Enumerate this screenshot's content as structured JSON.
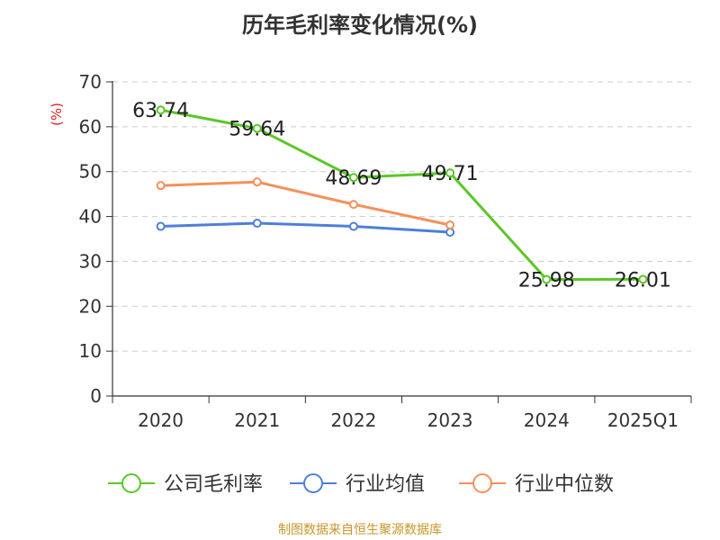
{
  "chart_data": {
    "type": "line",
    "title": "历年毛利率变化情况(%)",
    "ylabel": "(%)",
    "xlabel": "",
    "categories": [
      "2020",
      "2021",
      "2022",
      "2023",
      "2024",
      "2025Q1"
    ],
    "ylim": [
      0,
      70
    ],
    "yticks": [
      0,
      10,
      20,
      30,
      40,
      50,
      60,
      70
    ],
    "grid": true,
    "legend_position": "bottom",
    "series": [
      {
        "name": "公司毛利率",
        "color": "#5bc726",
        "values": [
          63.74,
          59.64,
          48.69,
          49.71,
          25.98,
          26.01
        ],
        "labels": [
          "63.74",
          "59.64",
          "48.69",
          "49.71",
          "25.98",
          "26.01"
        ]
      },
      {
        "name": "行业均值",
        "color": "#4e7fd9",
        "values": [
          37.8,
          38.5,
          37.8,
          36.5,
          null,
          null
        ]
      },
      {
        "name": "行业中位数",
        "color": "#f5905a",
        "values": [
          46.9,
          47.7,
          42.7,
          38.1,
          null,
          null
        ]
      }
    ]
  },
  "source": "制图数据来自恒生聚源数据库"
}
